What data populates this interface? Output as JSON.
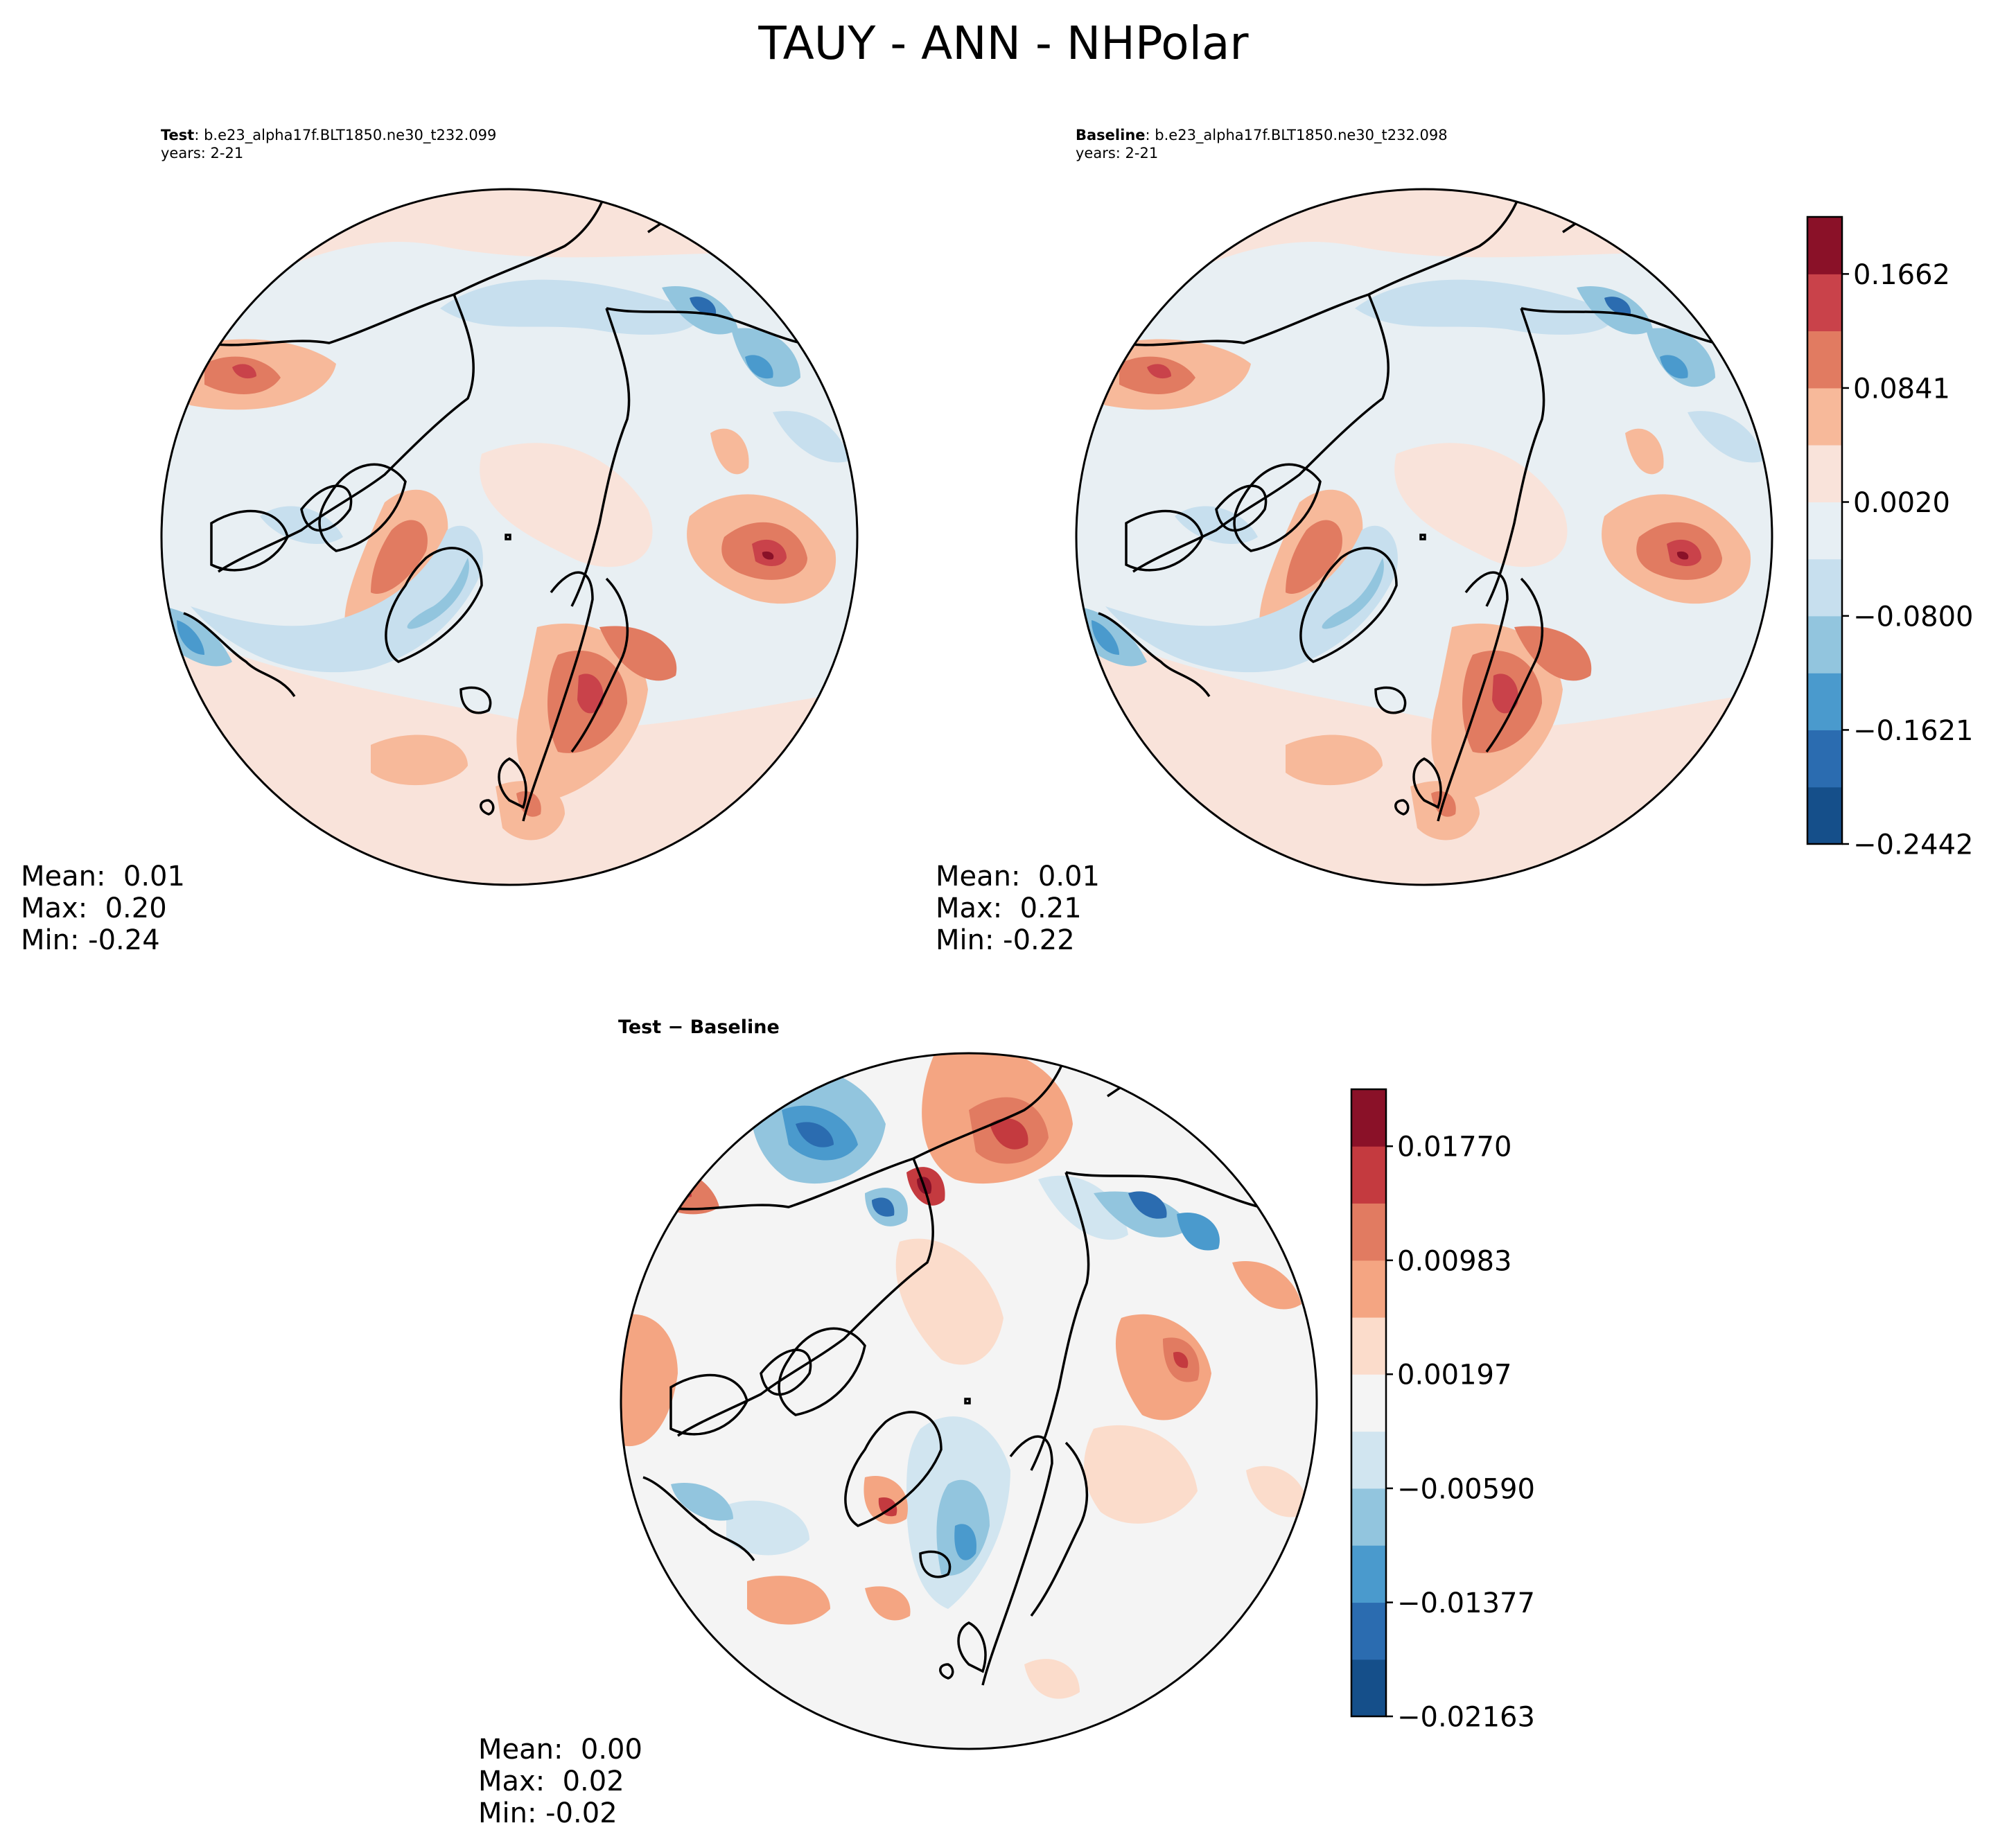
{
  "figure": {
    "title": "TAUY - ANN - NHPolar"
  },
  "panels": [
    {
      "id": "test",
      "run_label": "Test",
      "case": "b.e23_alpha17f.BLT1850.ne30_t232.099",
      "years": "years: 2-21",
      "stats": {
        "mean": "Mean:  0.01",
        "max": "Max:  0.20",
        "min": "Min: -0.24"
      }
    },
    {
      "id": "baseline",
      "run_label": "Baseline",
      "case": "b.e23_alpha17f.BLT1850.ne30_t232.098",
      "years": "years: 2-21",
      "stats": {
        "mean": "Mean:  0.01",
        "max": "Max:  0.21",
        "min": "Min: -0.22"
      }
    },
    {
      "id": "difference",
      "run_label": "Test",
      "operator": "−",
      "run_label_2": "Baseline",
      "stats": {
        "mean": "Mean:  0.00",
        "max": "Max:  0.02",
        "min": "Min: -0.02"
      }
    }
  ],
  "chart_data": [
    {
      "type": "contourf",
      "title": "Test: b.e23_alpha17f.BLT1850.ne30_t232.099 years: 2-21",
      "projection": "North polar stereographic",
      "mean": 0.01,
      "max": 0.2,
      "min": -0.24,
      "colorbar": "shared with Baseline panel"
    },
    {
      "type": "contourf",
      "title": "Baseline: b.e23_alpha17f.BLT1850.ne30_t232.098 years: 2-21",
      "projection": "North polar stereographic",
      "mean": 0.01,
      "max": 0.21,
      "min": -0.22,
      "colorbar": {
        "tick_labels": [
          "0.1662",
          "0.0841",
          "0.0020",
          "−0.0800",
          "−0.1621",
          "−0.2442"
        ],
        "tick_values": [
          0.1662,
          0.0841,
          0.002,
          -0.08,
          -0.1621,
          -0.2442
        ],
        "levels": [
          -0.2442,
          -0.2032,
          -0.1621,
          -0.1211,
          -0.08,
          -0.039,
          0.002,
          0.0431,
          0.0841,
          0.1252,
          0.1662,
          0.2073
        ],
        "colors": [
          "#154f8a",
          "#2b6cb0",
          "#4a9acd",
          "#92c5de",
          "#c7dfee",
          "#e7eff4",
          "#f9e3da",
          "#f7b99a",
          "#e17b61",
          "#c9424a",
          "#8a1128"
        ]
      }
    },
    {
      "type": "contourf",
      "title": "Test − Baseline",
      "projection": "North polar stereographic",
      "mean": 0.0,
      "max": 0.02,
      "min": -0.02,
      "colorbar": {
        "tick_labels": [
          "0.01770",
          "0.00983",
          "0.00197",
          "−0.00590",
          "−0.01377",
          "−0.02163"
        ],
        "tick_values": [
          0.0177,
          0.00983,
          0.00197,
          -0.0059,
          -0.01377,
          -0.02163
        ],
        "levels": [
          -0.02163,
          -0.0177,
          -0.01377,
          -0.00983,
          -0.0059,
          -0.00197,
          0.00197,
          0.0059,
          0.00983,
          0.01377,
          0.0177,
          0.02163
        ],
        "colors": [
          "#154f8a",
          "#2b6cb0",
          "#4a9acd",
          "#92c5de",
          "#d1e5f0",
          "#f4f4f4",
          "#fbdccb",
          "#f4a582",
          "#e17b61",
          "#c43a3f",
          "#8a1128"
        ]
      }
    }
  ]
}
